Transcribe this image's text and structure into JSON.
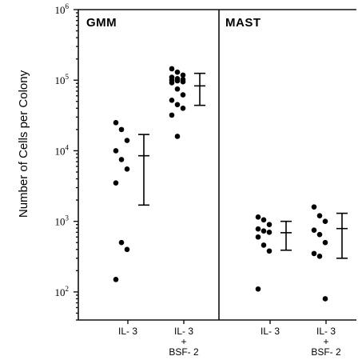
{
  "chart_data": {
    "type": "scatter",
    "ylabel": "Number of Cells per Colony",
    "yscale": "log",
    "ylim": [
      40,
      1000000
    ],
    "y_ticks": [
      {
        "base": "10",
        "exp": "6",
        "value": 1000000
      },
      {
        "base": "10",
        "exp": "5",
        "value": 100000
      },
      {
        "base": "10",
        "exp": "4",
        "value": 10000
      },
      {
        "base": "10",
        "exp": "3",
        "value": 1000
      },
      {
        "base": "10",
        "exp": "2",
        "value": 100
      }
    ],
    "panels": [
      {
        "label": "GMM",
        "groups": [
          {
            "label_lines": [
              "IL- 3"
            ],
            "points": [
              25000,
              20000,
              14000,
              10000,
              7500,
              5500,
              3500,
              500,
              400,
              150
            ],
            "mean": 8500,
            "upper": 17000,
            "lower": 1700
          },
          {
            "label_lines": [
              "IL- 3",
              "+",
              "BSF- 2"
            ],
            "points": [
              145000,
              130000,
              118000,
              110000,
              105000,
              102000,
              100000,
              98000,
              95000,
              92000,
              75000,
              62000,
              52000,
              45000,
              40000,
              32000,
              16000
            ],
            "mean": 83000,
            "upper": 125000,
            "lower": 44000
          }
        ]
      },
      {
        "label": "MAST",
        "groups": [
          {
            "label_lines": [
              "IL- 3"
            ],
            "points": [
              1150,
              1050,
              900,
              780,
              730,
              700,
              600,
              460,
              380,
              110
            ],
            "mean": 690,
            "upper": 1000,
            "lower": 390
          },
          {
            "label_lines": [
              "IL- 3",
              "+",
              "BSF- 2"
            ],
            "points": [
              1600,
              1200,
              1000,
              750,
              650,
              500,
              350,
              320,
              80
            ],
            "mean": 790,
            "upper": 1300,
            "lower": 300
          }
        ]
      }
    ]
  }
}
